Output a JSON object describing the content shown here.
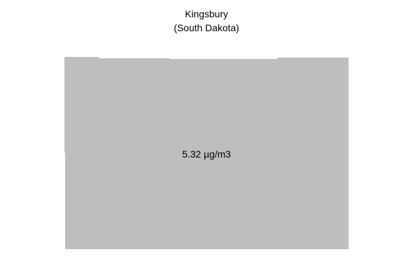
{
  "map": {
    "county_name": "Kingsbury",
    "state_label": "(South Dakota)",
    "value_label": "5.32 µg/m3",
    "region_fill": "#bebebe",
    "background": "#ffffff"
  }
}
